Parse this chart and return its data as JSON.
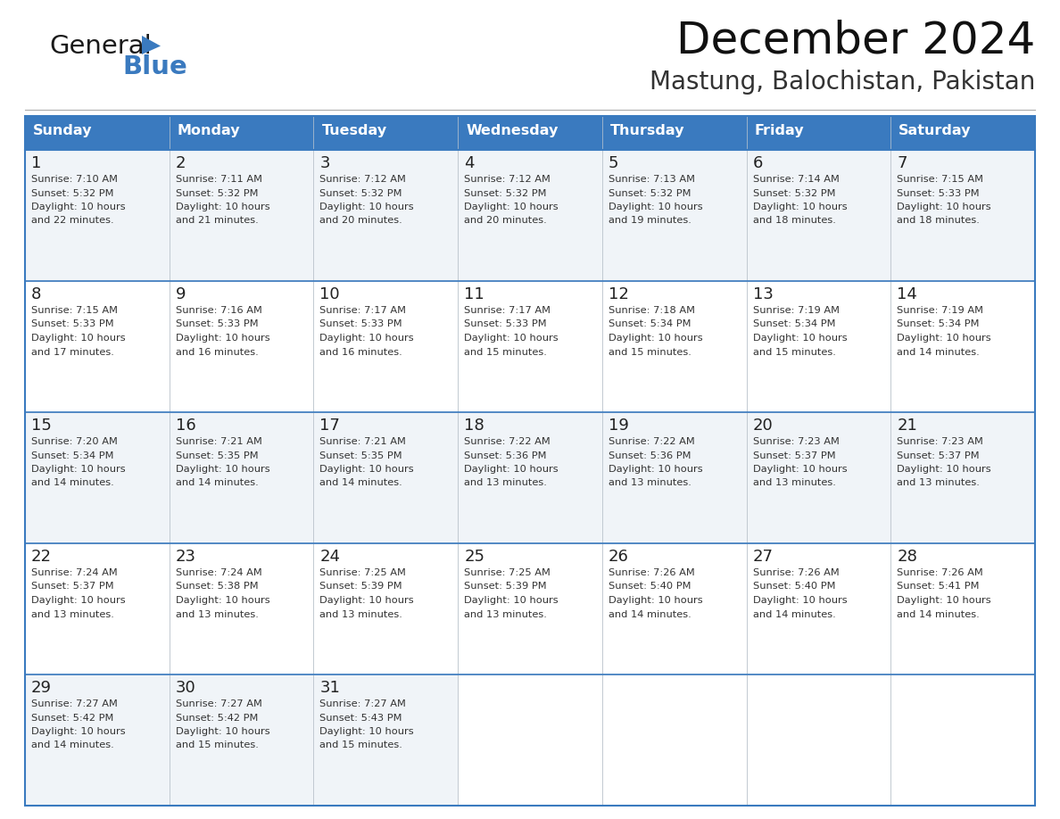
{
  "title": "December 2024",
  "subtitle": "Mastung, Balochistan, Pakistan",
  "days_of_week": [
    "Sunday",
    "Monday",
    "Tuesday",
    "Wednesday",
    "Thursday",
    "Friday",
    "Saturday"
  ],
  "header_bg": "#3a7abf",
  "header_text": "#ffffff",
  "cell_bg_even": "#f0f4f8",
  "cell_bg_odd": "#ffffff",
  "cell_border": "#c0c8d0",
  "week_sep_color": "#3a7abf",
  "day_num_color": "#222222",
  "cell_text_color": "#333333",
  "title_color": "#111111",
  "subtitle_color": "#333333",
  "weeks": [
    [
      {
        "day": 1,
        "sunrise": "7:10 AM",
        "sunset": "5:32 PM",
        "dl_min": "22"
      },
      {
        "day": 2,
        "sunrise": "7:11 AM",
        "sunset": "5:32 PM",
        "dl_min": "21"
      },
      {
        "day": 3,
        "sunrise": "7:12 AM",
        "sunset": "5:32 PM",
        "dl_min": "20"
      },
      {
        "day": 4,
        "sunrise": "7:12 AM",
        "sunset": "5:32 PM",
        "dl_min": "20"
      },
      {
        "day": 5,
        "sunrise": "7:13 AM",
        "sunset": "5:32 PM",
        "dl_min": "19"
      },
      {
        "day": 6,
        "sunrise": "7:14 AM",
        "sunset": "5:32 PM",
        "dl_min": "18"
      },
      {
        "day": 7,
        "sunrise": "7:15 AM",
        "sunset": "5:33 PM",
        "dl_min": "18"
      }
    ],
    [
      {
        "day": 8,
        "sunrise": "7:15 AM",
        "sunset": "5:33 PM",
        "dl_min": "17"
      },
      {
        "day": 9,
        "sunrise": "7:16 AM",
        "sunset": "5:33 PM",
        "dl_min": "16"
      },
      {
        "day": 10,
        "sunrise": "7:17 AM",
        "sunset": "5:33 PM",
        "dl_min": "16"
      },
      {
        "day": 11,
        "sunrise": "7:17 AM",
        "sunset": "5:33 PM",
        "dl_min": "15"
      },
      {
        "day": 12,
        "sunrise": "7:18 AM",
        "sunset": "5:34 PM",
        "dl_min": "15"
      },
      {
        "day": 13,
        "sunrise": "7:19 AM",
        "sunset": "5:34 PM",
        "dl_min": "15"
      },
      {
        "day": 14,
        "sunrise": "7:19 AM",
        "sunset": "5:34 PM",
        "dl_min": "14"
      }
    ],
    [
      {
        "day": 15,
        "sunrise": "7:20 AM",
        "sunset": "5:34 PM",
        "dl_min": "14"
      },
      {
        "day": 16,
        "sunrise": "7:21 AM",
        "sunset": "5:35 PM",
        "dl_min": "14"
      },
      {
        "day": 17,
        "sunrise": "7:21 AM",
        "sunset": "5:35 PM",
        "dl_min": "14"
      },
      {
        "day": 18,
        "sunrise": "7:22 AM",
        "sunset": "5:36 PM",
        "dl_min": "13"
      },
      {
        "day": 19,
        "sunrise": "7:22 AM",
        "sunset": "5:36 PM",
        "dl_min": "13"
      },
      {
        "day": 20,
        "sunrise": "7:23 AM",
        "sunset": "5:37 PM",
        "dl_min": "13"
      },
      {
        "day": 21,
        "sunrise": "7:23 AM",
        "sunset": "5:37 PM",
        "dl_min": "13"
      }
    ],
    [
      {
        "day": 22,
        "sunrise": "7:24 AM",
        "sunset": "5:37 PM",
        "dl_min": "13"
      },
      {
        "day": 23,
        "sunrise": "7:24 AM",
        "sunset": "5:38 PM",
        "dl_min": "13"
      },
      {
        "day": 24,
        "sunrise": "7:25 AM",
        "sunset": "5:39 PM",
        "dl_min": "13"
      },
      {
        "day": 25,
        "sunrise": "7:25 AM",
        "sunset": "5:39 PM",
        "dl_min": "13"
      },
      {
        "day": 26,
        "sunrise": "7:26 AM",
        "sunset": "5:40 PM",
        "dl_min": "14"
      },
      {
        "day": 27,
        "sunrise": "7:26 AM",
        "sunset": "5:40 PM",
        "dl_min": "14"
      },
      {
        "day": 28,
        "sunrise": "7:26 AM",
        "sunset": "5:41 PM",
        "dl_min": "14"
      }
    ],
    [
      {
        "day": 29,
        "sunrise": "7:27 AM",
        "sunset": "5:42 PM",
        "dl_min": "14"
      },
      {
        "day": 30,
        "sunrise": "7:27 AM",
        "sunset": "5:42 PM",
        "dl_min": "15"
      },
      {
        "day": 31,
        "sunrise": "7:27 AM",
        "sunset": "5:43 PM",
        "dl_min": "15"
      },
      null,
      null,
      null,
      null
    ]
  ],
  "logo_text1": "General",
  "logo_text2": "Blue",
  "logo_color1": "#1a1a1a",
  "logo_color2": "#3a7abf",
  "logo_triangle_color": "#3a7abf",
  "fig_width": 11.88,
  "fig_height": 9.18,
  "dpi": 100
}
